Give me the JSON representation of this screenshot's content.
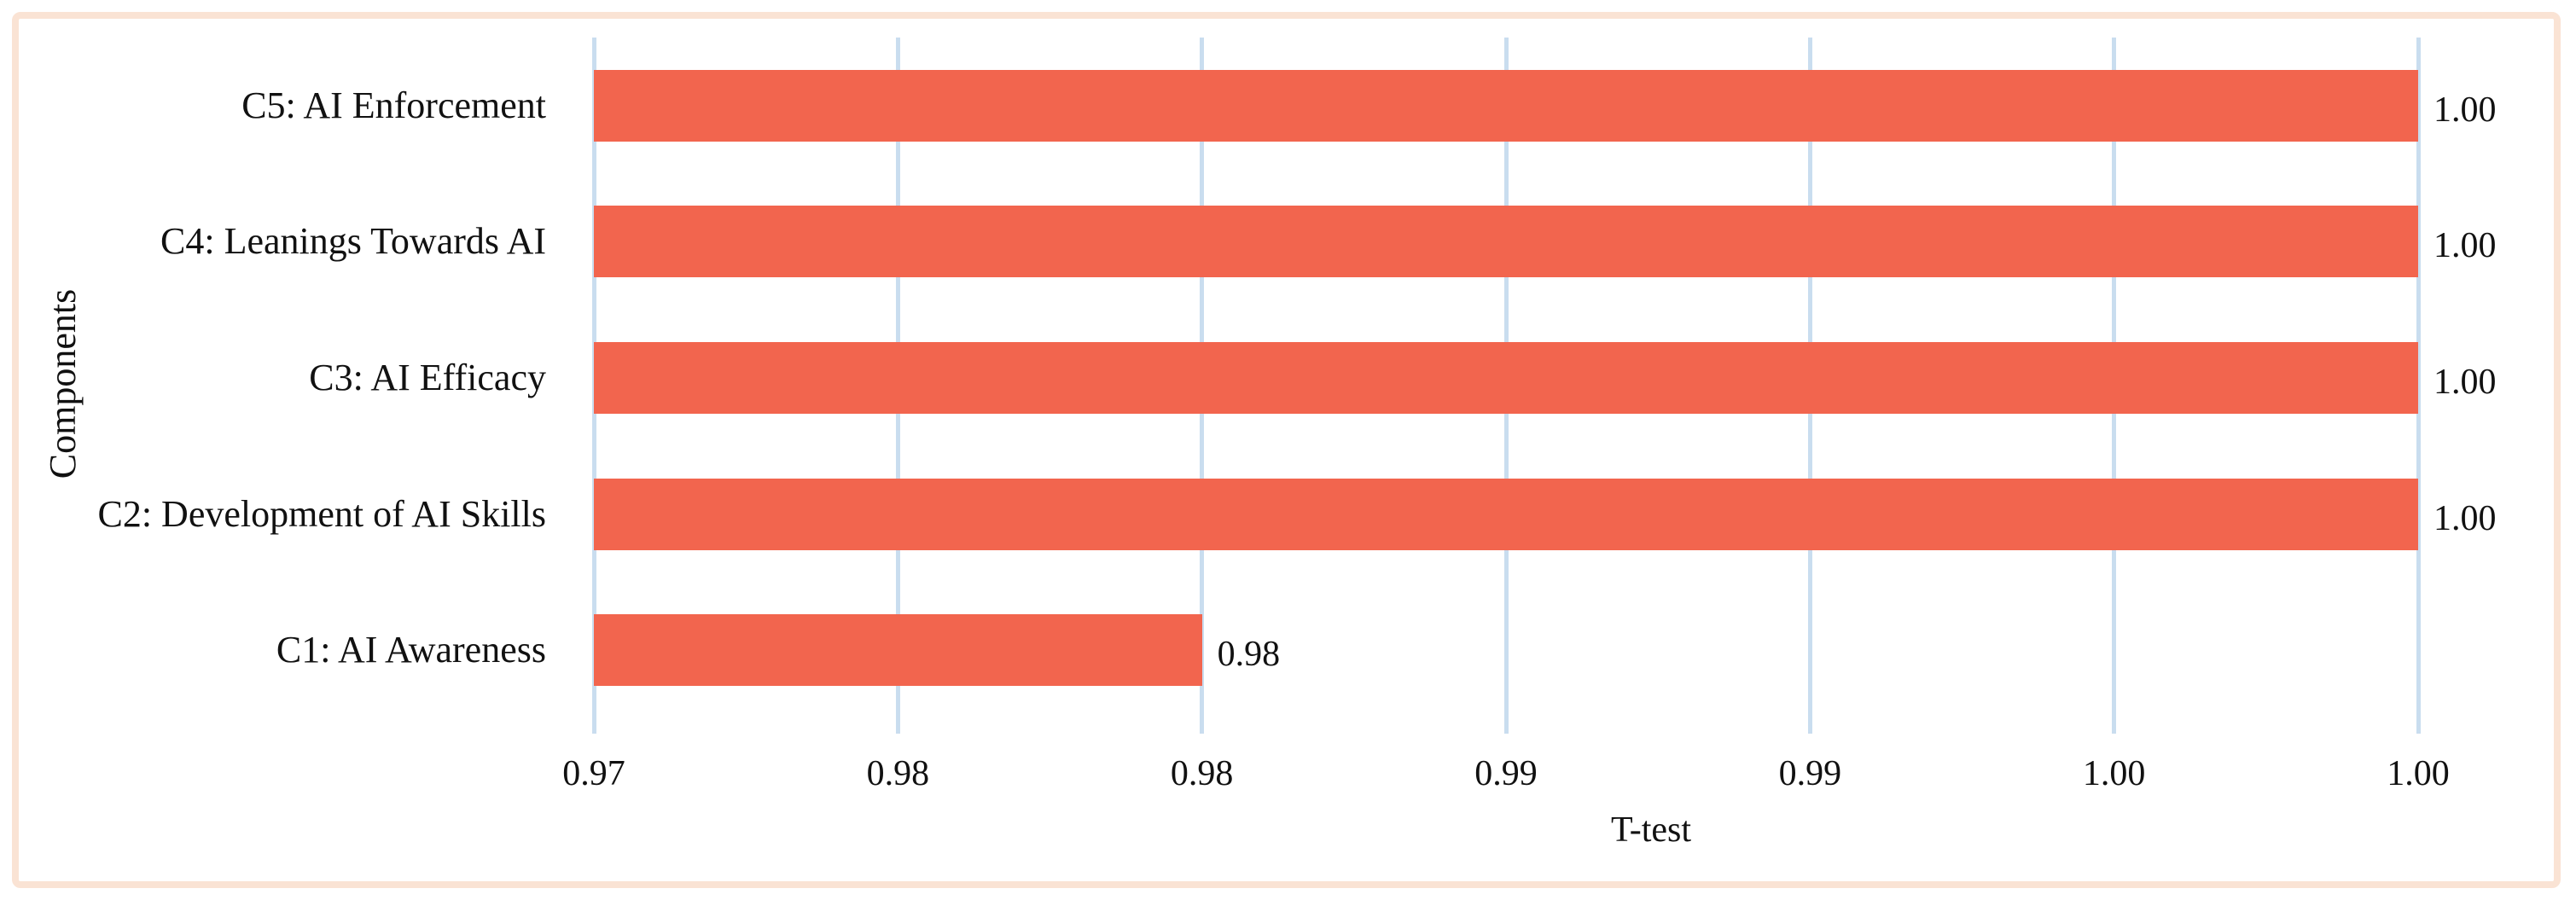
{
  "figure": {
    "background_color": "#ffffff",
    "frame_color": "#fae3d4"
  },
  "chart_data": {
    "type": "bar",
    "orientation": "horizontal",
    "title": "",
    "xlabel": "T-test",
    "ylabel": "Components",
    "categories": [
      "C1: AI Awareness",
      "C2: Development of AI Skills",
      "C3: AI Efficacy",
      "C4: Leanings Towards AI",
      "C5: AI Enforcement"
    ],
    "values": [
      0.98,
      1.0,
      1.0,
      1.0,
      1.0
    ],
    "bars_top_to_bottom": [
      {
        "label": "C5: AI Enforcement",
        "value": 1.0,
        "value_label": "1.00"
      },
      {
        "label": "C4: Leanings Towards AI",
        "value": 1.0,
        "value_label": "1.00"
      },
      {
        "label": "C3: AI Efficacy",
        "value": 1.0,
        "value_label": "1.00"
      },
      {
        "label": "C2: Development of AI Skills",
        "value": 1.0,
        "value_label": "1.00"
      },
      {
        "label": "C1: AI Awareness",
        "value": 0.98,
        "value_label": "0.98"
      }
    ],
    "xlim": [
      0.97,
      1.0
    ],
    "x_tick_step": 0.005,
    "x_tick_labels": [
      "0.97",
      "0.98",
      "0.98",
      "0.99",
      "0.99",
      "1.00",
      "1.00"
    ],
    "grid": "vertical-gridlines-on",
    "legend": "none",
    "bar_color": "#f2654e",
    "gridline_color": "#c9ddef",
    "text_color": "#111111"
  }
}
